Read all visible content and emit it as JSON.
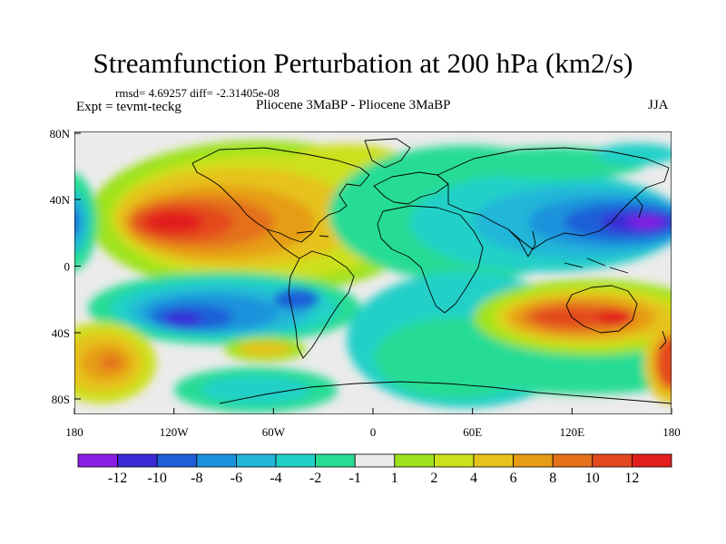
{
  "title": "Streamfunction Perturbation at 200 hPa (km2/s)",
  "stats": "rmsd= 4.69257 diff= -2.31405e-08",
  "expt": "Expt = tevmt-teckg",
  "case": "Pliocene   3MaBP - Pliocene   3MaBP",
  "season": "JJA",
  "axes": {
    "x_ticks": [
      "180",
      "120W",
      "60W",
      "0",
      "60E",
      "120E",
      "180"
    ],
    "y_ticks": [
      "80N",
      "40N",
      "0",
      "40S",
      "80S"
    ]
  },
  "colorbar": {
    "labels": [
      "-12",
      "-10",
      "-8",
      "-6",
      "-4",
      "-2",
      "-1",
      "1",
      "2",
      "4",
      "6",
      "8",
      "10",
      "12"
    ],
    "colors": [
      "#8a1ee6",
      "#3a2ad6",
      "#1e5ed8",
      "#1c92dc",
      "#22b6d8",
      "#22d0c8",
      "#28dc94",
      "#ebebeb",
      "#9ee21e",
      "#cde01c",
      "#e6c21c",
      "#e69c14",
      "#e4701a",
      "#e4481e",
      "#e21e1e"
    ]
  },
  "map_colors": {
    "neutral": "#ebebeb"
  }
}
